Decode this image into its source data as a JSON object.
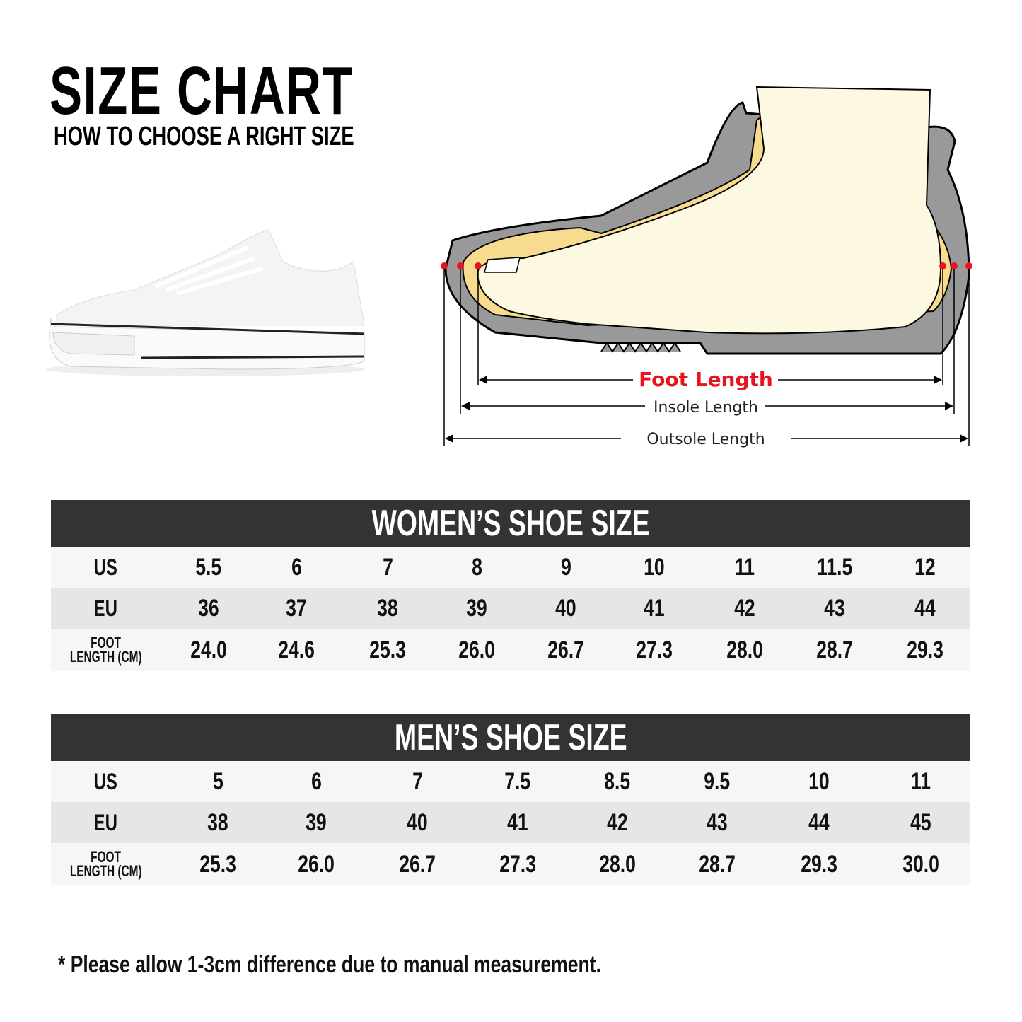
{
  "header": {
    "title": "SIZE CHART",
    "subtitle": "HOW TO CHOOSE A RIGHT SIZE"
  },
  "diagram": {
    "foot_length": "Foot Length",
    "insole_length": "Insole Length",
    "outsole_length": "Outsole Length",
    "accent_color": "#e8141b"
  },
  "women": {
    "title": "WOMEN’S SHOE SIZE",
    "row_labels": {
      "us": "US",
      "eu": "EU",
      "foot_1": "FOOT",
      "foot_2": "LENGTH (CM)"
    },
    "us": [
      "5.5",
      "6",
      "7",
      "8",
      "9",
      "10",
      "11",
      "11.5",
      "12"
    ],
    "eu": [
      "36",
      "37",
      "38",
      "39",
      "40",
      "41",
      "42",
      "43",
      "44"
    ],
    "cm": [
      "24.0",
      "24.6",
      "25.3",
      "26.0",
      "26.7",
      "27.3",
      "28.0",
      "28.7",
      "29.3"
    ]
  },
  "men": {
    "title": "MEN’S SHOE SIZE",
    "row_labels": {
      "us": "US",
      "eu": "EU",
      "foot_1": "FOOT",
      "foot_2": "LENGTH (CM)"
    },
    "us": [
      "5",
      "6",
      "7",
      "7.5",
      "8.5",
      "9.5",
      "10",
      "11"
    ],
    "eu": [
      "38",
      "39",
      "40",
      "41",
      "42",
      "43",
      "44",
      "45"
    ],
    "cm": [
      "25.3",
      "26.0",
      "26.7",
      "27.3",
      "28.0",
      "28.7",
      "29.3",
      "30.0"
    ]
  },
  "footnote": "* Please allow 1-3cm difference due to manual measurement.",
  "colors": {
    "header_bar": "#333333",
    "row_light": "#f6f6f6",
    "row_dark": "#e6e6e6"
  }
}
